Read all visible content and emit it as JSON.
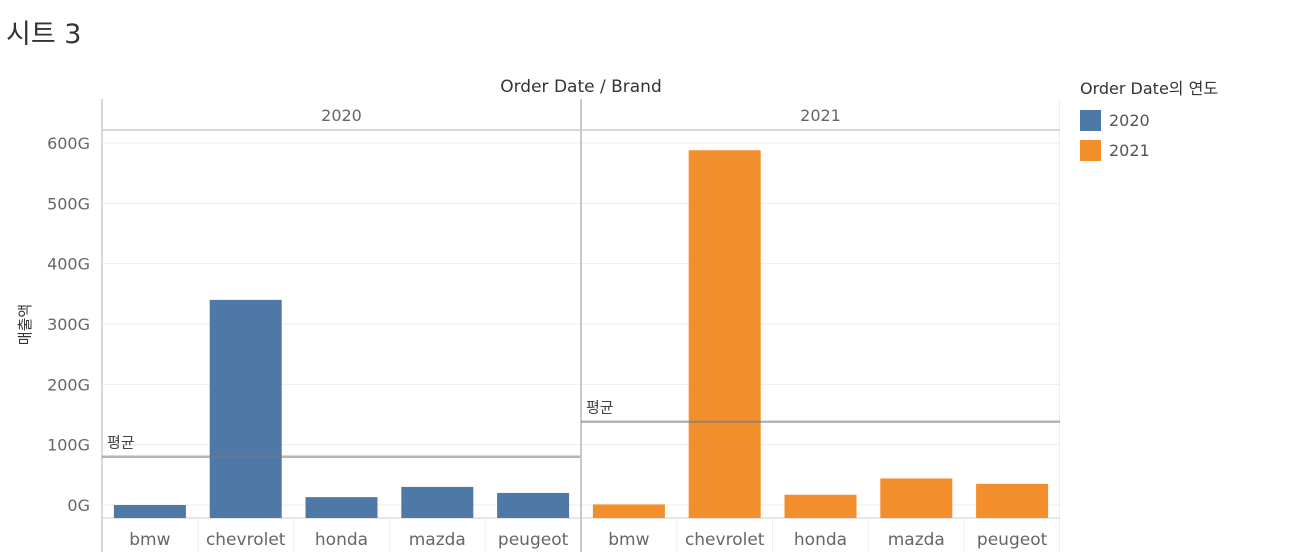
{
  "sheet": {
    "title": "시트 3"
  },
  "colors": {
    "y2020": "#4e79a7",
    "y2021": "#f28e2b",
    "avg_line": "#b3b3b3"
  },
  "legend": {
    "title": "Order Date의 연도",
    "items": [
      {
        "label": "2020",
        "color": "#4e79a7"
      },
      {
        "label": "2021",
        "color": "#f28e2b"
      }
    ]
  },
  "chart_data": {
    "type": "bar",
    "title": "",
    "header": "Order Date  /  Brand",
    "ylabel": "매출액",
    "ylim": [
      -10,
      600
    ],
    "yticks": [
      0,
      100,
      200,
      300,
      400,
      500,
      600
    ],
    "ytick_labels": [
      "0G",
      "100G",
      "200G",
      "300G",
      "400G",
      "500G",
      "600G"
    ],
    "categories": [
      "bmw",
      "chevrolet",
      "honda",
      "mazda",
      "peugeot"
    ],
    "reference_label": "평균",
    "panels": [
      {
        "name": "2020",
        "color": "#4e79a7",
        "values": [
          0,
          340,
          13,
          30,
          20
        ],
        "average": 80
      },
      {
        "name": "2021",
        "color": "#f28e2b",
        "values": [
          1,
          588,
          17,
          44,
          35
        ],
        "average": 138
      }
    ]
  }
}
